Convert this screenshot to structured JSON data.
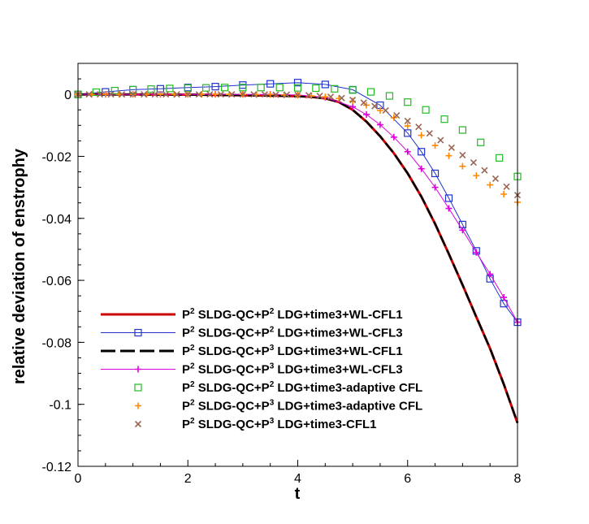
{
  "chart_data": {
    "type": "line",
    "title": "",
    "xlabel": "t",
    "ylabel": "relative deviation of enstrophy",
    "xlim": [
      0,
      8
    ],
    "ylim": [
      -0.12,
      0.01
    ],
    "xticks": [
      0,
      2,
      4,
      6,
      8
    ],
    "xtick_labels": [
      "0",
      "2",
      "4",
      "6",
      "8"
    ],
    "yticks": [
      0,
      -0.02,
      -0.04,
      -0.06,
      -0.08,
      -0.1,
      -0.12
    ],
    "ytick_labels": [
      "0",
      "-0.02",
      "-0.04",
      "-0.06",
      "-0.08",
      "-0.1",
      "-0.12"
    ],
    "legend_position": "bottom-left",
    "series": [
      {
        "name": "SLDG-QC+P2 LDG+time3+WL-CFL1",
        "legend": {
          "p1": "P",
          "s1": "2",
          "mid": " SLDG-QC+P",
          "s2": "2",
          "end": " LDG+time3+WL-CFL1"
        },
        "color": "#cc0000",
        "style": "solid",
        "marker": "none",
        "x": [
          0,
          0.5,
          1,
          1.5,
          2,
          2.5,
          3,
          3.5,
          4,
          4.25,
          4.5,
          4.75,
          5,
          5.25,
          5.5,
          5.75,
          6,
          6.25,
          6.5,
          6.75,
          7,
          7.25,
          7.5,
          7.75,
          8
        ],
        "y": [
          0,
          0,
          0,
          -0.0001,
          -0.0001,
          -0.0002,
          -0.0003,
          -0.0004,
          -0.0006,
          -0.0008,
          -0.0013,
          -0.0025,
          -0.005,
          -0.0088,
          -0.0135,
          -0.019,
          -0.0255,
          -0.033,
          -0.0418,
          -0.0515,
          -0.0615,
          -0.0718,
          -0.082,
          -0.0935,
          -0.106
        ]
      },
      {
        "name": "SLDG-QC+P2 LDG+time3+WL-CFL3",
        "legend": {
          "p1": "P",
          "s1": "2",
          "mid": " SLDG-QC+P",
          "s2": "2",
          "end": " LDG+time3+WL-CFL3"
        },
        "color": "#2233cc",
        "style": "solid",
        "marker": "square",
        "x": [
          0,
          0.5,
          1,
          1.5,
          2,
          2.5,
          3,
          3.5,
          4,
          4.5,
          5,
          5.5,
          6,
          6.25,
          6.5,
          6.75,
          7,
          7.25,
          7.5,
          7.75,
          8
        ],
        "y": [
          0,
          0.0008,
          0.0015,
          0.0018,
          0.0022,
          0.0025,
          0.003,
          0.0034,
          0.0038,
          0.0032,
          0.0015,
          -0.0035,
          -0.0125,
          -0.0185,
          -0.0255,
          -0.0335,
          -0.042,
          -0.0505,
          -0.0595,
          -0.0675,
          -0.0735
        ]
      },
      {
        "name": "SLDG-QC+P3 LDG+time3+WL-CFL1",
        "legend": {
          "p1": "P",
          "s1": "2",
          "mid": " SLDG-QC+P",
          "s2": "3",
          "end": " LDG+time3+WL-CFL1"
        },
        "color": "#000000",
        "style": "dashed",
        "marker": "none",
        "x": [
          0,
          0.5,
          1,
          1.5,
          2,
          2.5,
          3,
          3.5,
          4,
          4.25,
          4.5,
          4.75,
          5,
          5.25,
          5.5,
          5.75,
          6,
          6.25,
          6.5,
          6.75,
          7,
          7.25,
          7.5,
          7.75,
          8
        ],
        "y": [
          0,
          0,
          0,
          -0.0001,
          -0.0001,
          -0.0002,
          -0.0003,
          -0.0004,
          -0.0006,
          -0.0008,
          -0.0013,
          -0.0025,
          -0.005,
          -0.0088,
          -0.0135,
          -0.019,
          -0.0255,
          -0.033,
          -0.0418,
          -0.0515,
          -0.0615,
          -0.0718,
          -0.082,
          -0.0935,
          -0.106
        ]
      },
      {
        "name": "SLDG-QC+P3 LDG+time3+WL-CFL3",
        "legend": {
          "p1": "P",
          "s1": "2",
          "mid": " SLDG-QC+P",
          "s2": "3",
          "end": " LDG+time3+WL-CFL3"
        },
        "color": "#dd00dd",
        "style": "solid",
        "marker": "plus",
        "x": [
          0,
          0.5,
          1,
          1.5,
          2,
          2.5,
          3,
          3.5,
          4,
          4.5,
          5,
          5.25,
          5.5,
          5.75,
          6,
          6.25,
          6.5,
          6.75,
          7,
          7.25,
          7.5,
          7.75,
          8
        ],
        "y": [
          0,
          0,
          0,
          0,
          0,
          0,
          0,
          0,
          -0.0002,
          -0.001,
          -0.004,
          -0.0065,
          -0.0098,
          -0.0138,
          -0.0185,
          -0.024,
          -0.03,
          -0.0368,
          -0.0438,
          -0.051,
          -0.058,
          -0.0655,
          -0.0735
        ]
      },
      {
        "name": "SLDG-QC+P2 LDG+time3-adaptive CFL",
        "legend": {
          "p1": "P",
          "s1": "2",
          "mid": " SLDG-QC+P",
          "s2": "2",
          "end": " LDG+time3-adaptive CFL"
        },
        "color": "#22bb22",
        "style": "none",
        "marker": "square",
        "x": [
          0,
          0.33,
          0.67,
          1,
          1.33,
          1.67,
          2,
          2.33,
          2.67,
          3,
          3.33,
          3.67,
          4,
          4.33,
          4.67,
          5,
          5.33,
          5.67,
          6,
          6.33,
          6.67,
          7,
          7.33,
          7.67,
          8
        ],
        "y": [
          0,
          0.0007,
          0.0012,
          0.0015,
          0.0017,
          0.0019,
          0.002,
          0.0021,
          0.0022,
          0.0022,
          0.0022,
          0.0022,
          0.0021,
          0.002,
          0.0018,
          0.0014,
          0.0008,
          -0.0005,
          -0.0025,
          -0.005,
          -0.008,
          -0.0115,
          -0.0155,
          -0.0205,
          -0.0265
        ]
      },
      {
        "name": "SLDG-QC+P3 LDG+time3-adaptive CFL",
        "legend": {
          "p1": "P",
          "s1": "2",
          "mid": " SLDG-QC+P",
          "s2": "3",
          "end": " LDG+time3-adaptive CFL"
        },
        "color": "#ff8800",
        "style": "none",
        "marker": "plus",
        "x": [
          0,
          0.25,
          0.5,
          0.75,
          1,
          1.25,
          1.5,
          1.75,
          2,
          2.25,
          2.5,
          2.75,
          3,
          3.25,
          3.5,
          3.75,
          4,
          4.25,
          4.5,
          4.75,
          5,
          5.25,
          5.5,
          5.75,
          6,
          6.25,
          6.5,
          6.75,
          7,
          7.25,
          7.5,
          7.75,
          8
        ],
        "y": [
          0,
          0,
          0,
          0,
          0,
          0,
          0,
          0,
          0,
          0,
          0,
          0,
          0,
          -0.0001,
          -0.0001,
          -0.0002,
          -0.0003,
          -0.0005,
          -0.0008,
          -0.0013,
          -0.0022,
          -0.0035,
          -0.0052,
          -0.0075,
          -0.0102,
          -0.0132,
          -0.0165,
          -0.0198,
          -0.0232,
          -0.0262,
          -0.0292,
          -0.0322,
          -0.0348
        ]
      },
      {
        "name": "SLDG-QC+P3 LDG+time3-CFL1",
        "legend": {
          "p1": "P",
          "s1": "2",
          "mid": " SLDG-QC+P",
          "s2": "3",
          "end": " LDG+time3-CFL1"
        },
        "color": "#996655",
        "style": "none",
        "marker": "x",
        "x": [
          0,
          0.2,
          0.4,
          0.6,
          0.8,
          1,
          1.2,
          1.4,
          1.6,
          1.8,
          2,
          2.2,
          2.4,
          2.6,
          2.8,
          3,
          3.2,
          3.4,
          3.6,
          3.8,
          4,
          4.2,
          4.4,
          4.6,
          4.8,
          5,
          5.2,
          5.4,
          5.6,
          5.8,
          6,
          6.2,
          6.4,
          6.6,
          6.8,
          7,
          7.2,
          7.4,
          7.6,
          7.8,
          8
        ],
        "y": [
          0,
          0,
          0,
          0,
          0,
          0,
          0,
          0,
          0,
          0,
          0,
          0,
          0,
          0,
          0,
          0,
          0,
          0,
          -0.0001,
          -0.0001,
          -0.0002,
          -0.0003,
          -0.0005,
          -0.0008,
          -0.0012,
          -0.0018,
          -0.0027,
          -0.0038,
          -0.0052,
          -0.0068,
          -0.0086,
          -0.0105,
          -0.0126,
          -0.0148,
          -0.0172,
          -0.0196,
          -0.022,
          -0.0245,
          -0.0272,
          -0.0298,
          -0.0325
        ]
      }
    ]
  }
}
